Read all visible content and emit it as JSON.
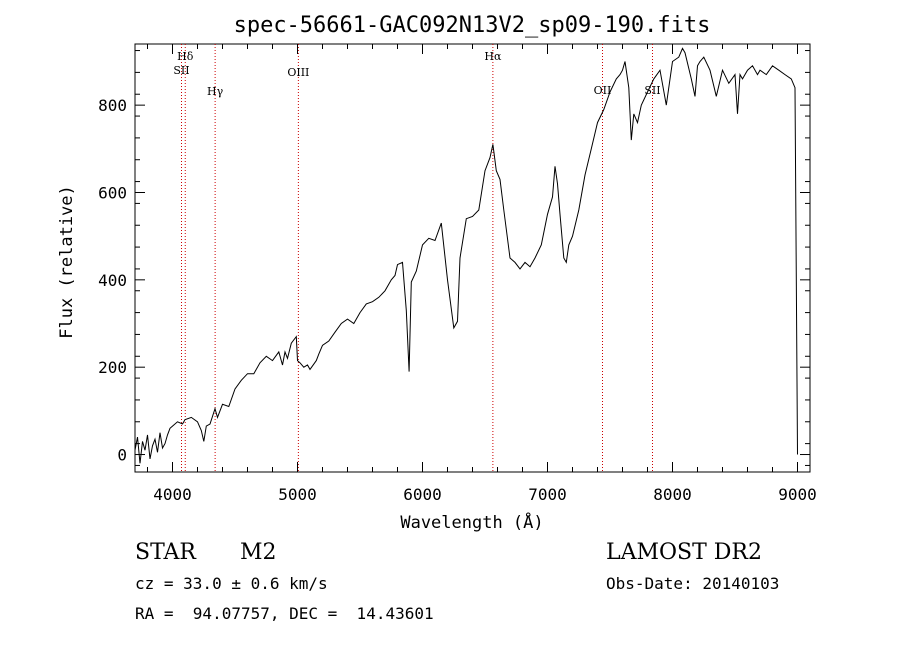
{
  "chart_data": {
    "type": "line",
    "title": "spec-56661-GAC092N13V2_sp09-190.fits",
    "xlabel": "Wavelength (Å)",
    "ylabel": "Flux (relative)",
    "xlim": [
      3700,
      9100
    ],
    "ylim": [
      -40,
      940
    ],
    "xticks": [
      4000,
      5000,
      6000,
      7000,
      8000,
      9000
    ],
    "yticks": [
      0,
      200,
      400,
      600,
      800
    ],
    "grid": false,
    "series": [
      {
        "x": [
          3700,
          3720,
          3740,
          3760,
          3780,
          3800,
          3820,
          3840,
          3860,
          3880,
          3900,
          3920,
          3940,
          3960,
          3980,
          4000,
          4040,
          4080,
          4100,
          4150,
          4200,
          4230,
          4250,
          4270,
          4300,
          4340,
          4360,
          4400,
          4450,
          4500,
          4550,
          4600,
          4650,
          4700,
          4750,
          4800,
          4850,
          4880,
          4900,
          4920,
          4950,
          4990,
          5000,
          5020,
          5050,
          5080,
          5100,
          5150,
          5170,
          5200,
          5250,
          5300,
          5350,
          5400,
          5450,
          5500,
          5550,
          5600,
          5650,
          5700,
          5750,
          5780,
          5800,
          5840,
          5870,
          5893,
          5910,
          5950,
          6000,
          6050,
          6100,
          6150,
          6200,
          6250,
          6280,
          6300,
          6350,
          6400,
          6450,
          6500,
          6540,
          6563,
          6590,
          6620,
          6650,
          6700,
          6740,
          6780,
          6820,
          6860,
          6900,
          6950,
          7000,
          7040,
          7060,
          7080,
          7100,
          7130,
          7150,
          7170,
          7200,
          7250,
          7300,
          7350,
          7400,
          7450,
          7500,
          7550,
          7580,
          7600,
          7620,
          7650,
          7670,
          7690,
          7720,
          7750,
          7800,
          7850,
          7900,
          7950,
          8000,
          8050,
          8080,
          8100,
          8150,
          8180,
          8200,
          8220,
          8250,
          8300,
          8350,
          8400,
          8450,
          8500,
          8520,
          8540,
          8560,
          8600,
          8640,
          8680,
          8700,
          8750,
          8800,
          8850,
          8900,
          8950,
          8980,
          9000
        ],
        "y": [
          10,
          40,
          -20,
          30,
          10,
          45,
          -10,
          20,
          35,
          5,
          50,
          15,
          25,
          45,
          60,
          65,
          75,
          70,
          80,
          85,
          75,
          55,
          30,
          65,
          70,
          105,
          85,
          115,
          110,
          150,
          170,
          185,
          185,
          210,
          225,
          215,
          235,
          205,
          235,
          220,
          255,
          270,
          215,
          210,
          200,
          205,
          195,
          215,
          230,
          250,
          260,
          280,
          300,
          310,
          300,
          325,
          345,
          350,
          360,
          375,
          400,
          410,
          435,
          440,
          330,
          190,
          395,
          420,
          480,
          495,
          490,
          530,
          400,
          290,
          305,
          450,
          540,
          545,
          560,
          650,
          680,
          710,
          650,
          630,
          560,
          450,
          440,
          425,
          440,
          430,
          450,
          480,
          550,
          590,
          660,
          620,
          550,
          450,
          440,
          480,
          500,
          560,
          640,
          700,
          760,
          790,
          830,
          860,
          870,
          880,
          900,
          840,
          720,
          780,
          760,
          800,
          830,
          860,
          880,
          800,
          900,
          910,
          930,
          920,
          860,
          820,
          890,
          900,
          910,
          880,
          820,
          880,
          850,
          870,
          780,
          870,
          860,
          880,
          890,
          870,
          880,
          870,
          890,
          880,
          870,
          860,
          840,
          0
        ]
      }
    ],
    "lines": [
      {
        "label": "Hδ",
        "x": 4102
      },
      {
        "label": "SII",
        "x": 4072
      },
      {
        "label": "Hγ",
        "x": 4341
      },
      {
        "label": "OIII",
        "x": 5007
      },
      {
        "label": "Hα",
        "x": 6563
      },
      {
        "label": "OII",
        "x": 7440
      },
      {
        "label": "SII",
        "x": 7840
      }
    ]
  },
  "info": {
    "object_class": "STAR",
    "subclass": "M2",
    "survey": "LAMOST DR2",
    "cz": "cz = 33.0 ± 0.6 km/s",
    "obs_date": "Obs-Date: 20140103",
    "coords": "RA =  94.07757, DEC =  14.43601"
  },
  "colors": {
    "spectrum": "#000000",
    "line_marker": "#cc0000"
  }
}
